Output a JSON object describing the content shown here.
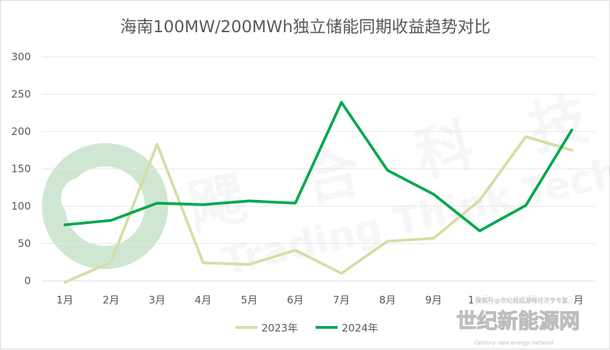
{
  "chart_data": {
    "type": "line",
    "title": "海南100MW/200MWh独立储能同期收益趋势对比",
    "categories": [
      "1月",
      "2月",
      "3月",
      "4月",
      "5月",
      "6月",
      "7月",
      "8月",
      "9月",
      "10月",
      "11月",
      "12月"
    ],
    "ylim": [
      0,
      300
    ],
    "yticks": [
      "0",
      "50",
      "100",
      "150",
      "200",
      "250",
      "300"
    ],
    "grid": true,
    "legend_position": "bottom",
    "series": [
      {
        "name": "2023年",
        "color": "#d3dfa3",
        "values": [
          -2,
          25,
          183,
          24,
          22,
          41,
          10,
          53,
          57,
          108,
          193,
          175
        ]
      },
      {
        "name": "2024年",
        "color": "#00a94f",
        "values": [
          75,
          81,
          104,
          102,
          107,
          104,
          239,
          148,
          116,
          67,
          101,
          202
        ]
      }
    ]
  },
  "watermark": {
    "chars": [
      "飔",
      "合",
      "科",
      "技"
    ],
    "english": "Trading Think Technology",
    "logo_color": "#cfe7d2"
  },
  "branding": {
    "name": "世纪新能源网",
    "sub": "Century new energy network",
    "stamp": "搜狐号@世纪新能源网经济学专家"
  }
}
